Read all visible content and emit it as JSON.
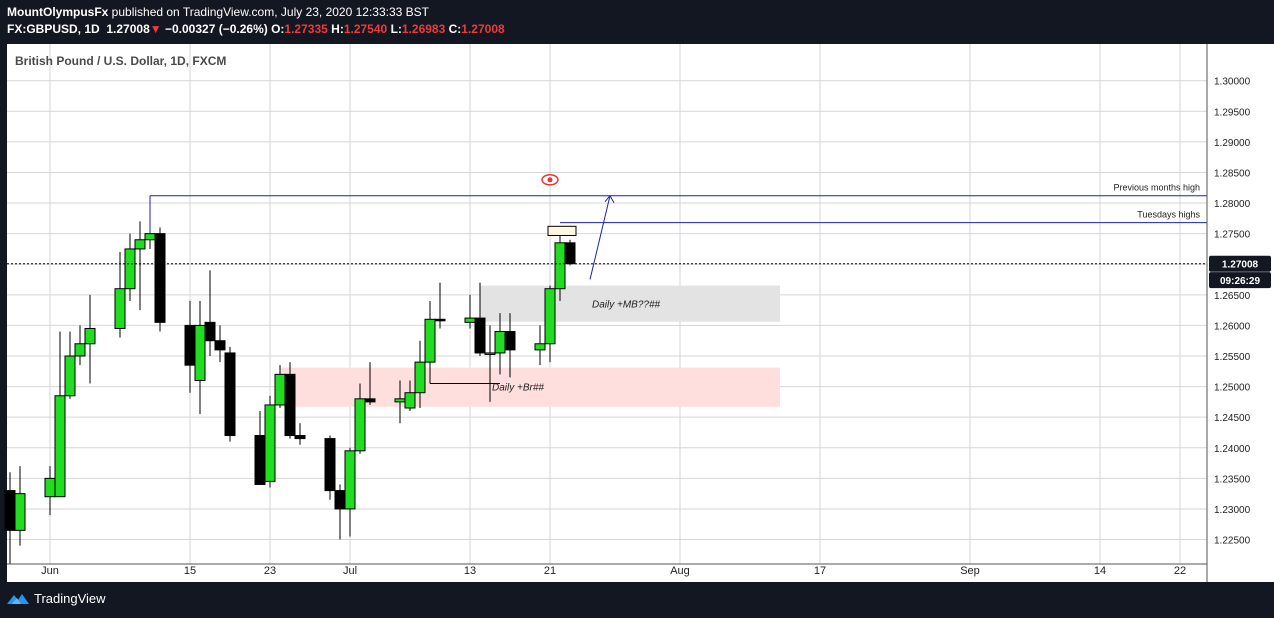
{
  "header": {
    "author": "MountOlympusFx",
    "published_text": " published on TradingView.com, July 23, 2020 12:33:33 BST",
    "symbol": "FX:GBPUSD, 1D",
    "last": "1.27008",
    "change_icon": "down-triangle-icon",
    "change": "−0.00327 (−0.26%)",
    "o_label": "O:",
    "o_value": "1.27335",
    "h_label": "H:",
    "h_value": "1.27540",
    "l_label": "L:",
    "l_value": "1.26983",
    "c_label": "C:",
    "c_value": "1.27008"
  },
  "footer": {
    "brand": "TradingView",
    "logo_icon": "tradingview-logo-icon"
  },
  "colors": {
    "background": "#131722",
    "chart_bg": "#ffffff",
    "grid": "#d6d6d6",
    "up": "#21dd21",
    "down": "#000000",
    "trendline": "#1a23a6",
    "demand_zone": "#e3e3e3",
    "breaker_zone": "#ffdede",
    "label_bg": "#131722",
    "change_down": "#ef3a3a"
  },
  "chart_data": {
    "type": "candlestick",
    "title": "British Pound / U.S. Dollar, 1D, FXCM",
    "y_range": [
      1.221,
      1.306
    ],
    "grid": true,
    "y_ticks": [
      "1.22500",
      "1.23000",
      "1.23500",
      "1.24000",
      "1.24500",
      "1.25000",
      "1.25500",
      "1.26000",
      "1.26500",
      "1.27000",
      "1.27500",
      "1.28000",
      "1.28500",
      "1.29000",
      "1.29500",
      "1.30000"
    ],
    "x_ticks": [
      {
        "label": "Jun",
        "date": "2020-06-01"
      },
      {
        "label": "15",
        "date": "2020-06-15"
      },
      {
        "label": "23",
        "date": "2020-06-23"
      },
      {
        "label": "Jul",
        "date": "2020-07-01"
      },
      {
        "label": "13",
        "date": "2020-07-13"
      },
      {
        "label": "21",
        "date": "2020-07-21"
      },
      {
        "label": "Aug",
        "date": "2020-08-03"
      },
      {
        "label": "17",
        "date": "2020-08-17"
      },
      {
        "label": "Sep",
        "date": "2020-09-01"
      },
      {
        "label": "14",
        "date": "2020-09-14"
      },
      {
        "label": "22",
        "date": "2020-09-22"
      }
    ],
    "candles": [
      {
        "date": "2020-05-28",
        "o": 1.233,
        "h": 1.236,
        "l": 1.221,
        "c": 1.2265
      },
      {
        "date": "2020-05-29",
        "o": 1.2265,
        "h": 1.237,
        "l": 1.224,
        "c": 1.2325
      },
      {
        "date": "2020-06-01",
        "o": 1.232,
        "h": 1.237,
        "l": 1.229,
        "c": 1.235
      },
      {
        "date": "2020-06-02",
        "o": 1.232,
        "h": 1.259,
        "l": 1.232,
        "c": 1.2485
      },
      {
        "date": "2020-06-03",
        "o": 1.2485,
        "h": 1.259,
        "l": 1.248,
        "c": 1.255
      },
      {
        "date": "2020-06-04",
        "o": 1.255,
        "h": 1.26,
        "l": 1.2535,
        "c": 1.257
      },
      {
        "date": "2020-06-05",
        "o": 1.257,
        "h": 1.265,
        "l": 1.2505,
        "c": 1.2595
      },
      {
        "date": "2020-06-08",
        "o": 1.2595,
        "h": 1.272,
        "l": 1.258,
        "c": 1.266
      },
      {
        "date": "2020-06-09",
        "o": 1.266,
        "h": 1.275,
        "l": 1.264,
        "c": 1.2725
      },
      {
        "date": "2020-06-10",
        "o": 1.2725,
        "h": 1.277,
        "l": 1.2625,
        "c": 1.274
      },
      {
        "date": "2020-06-11",
        "o": 1.274,
        "h": 1.281,
        "l": 1.2725,
        "c": 1.275
      },
      {
        "date": "2020-06-12",
        "o": 1.275,
        "h": 1.276,
        "l": 1.259,
        "c": 1.2605
      },
      {
        "date": "2020-06-15",
        "o": 1.26,
        "h": 1.264,
        "l": 1.249,
        "c": 1.2535
      },
      {
        "date": "2020-06-16",
        "o": 1.251,
        "h": 1.264,
        "l": 1.2455,
        "c": 1.26
      },
      {
        "date": "2020-06-17",
        "o": 1.2605,
        "h": 1.269,
        "l": 1.255,
        "c": 1.2575
      },
      {
        "date": "2020-06-18",
        "o": 1.2575,
        "h": 1.26,
        "l": 1.254,
        "c": 1.256
      },
      {
        "date": "2020-06-19",
        "o": 1.2555,
        "h": 1.2565,
        "l": 1.241,
        "c": 1.242
      },
      {
        "date": "2020-06-22",
        "o": 1.242,
        "h": 1.246,
        "l": 1.234,
        "c": 1.234
      },
      {
        "date": "2020-06-23",
        "o": 1.2345,
        "h": 1.2485,
        "l": 1.2335,
        "c": 1.247
      },
      {
        "date": "2020-06-24",
        "o": 1.247,
        "h": 1.2535,
        "l": 1.2465,
        "c": 1.252
      },
      {
        "date": "2020-06-25",
        "o": 1.252,
        "h": 1.254,
        "l": 1.2415,
        "c": 1.242
      },
      {
        "date": "2020-06-26",
        "o": 1.242,
        "h": 1.244,
        "l": 1.2405,
        "c": 1.2415
      },
      {
        "date": "2020-06-29",
        "o": 1.2415,
        "h": 1.242,
        "l": 1.2315,
        "c": 1.233
      },
      {
        "date": "2020-06-30",
        "o": 1.233,
        "h": 1.234,
        "l": 1.225,
        "c": 1.23
      },
      {
        "date": "2020-07-01",
        "o": 1.23,
        "h": 1.24,
        "l": 1.2255,
        "c": 1.2395
      },
      {
        "date": "2020-07-02",
        "o": 1.2395,
        "h": 1.2505,
        "l": 1.239,
        "c": 1.248
      },
      {
        "date": "2020-07-03",
        "o": 1.248,
        "h": 1.254,
        "l": 1.247,
        "c": 1.2475
      },
      {
        "date": "2020-07-06",
        "o": 1.2475,
        "h": 1.251,
        "l": 1.244,
        "c": 1.248
      },
      {
        "date": "2020-07-07",
        "o": 1.2465,
        "h": 1.251,
        "l": 1.246,
        "c": 1.249
      },
      {
        "date": "2020-07-08",
        "o": 1.249,
        "h": 1.2575,
        "l": 1.2465,
        "c": 1.254
      },
      {
        "date": "2020-07-09",
        "o": 1.254,
        "h": 1.264,
        "l": 1.2505,
        "c": 1.261
      },
      {
        "date": "2020-07-10",
        "o": 1.261,
        "h": 1.267,
        "l": 1.2595,
        "c": 1.2608
      },
      {
        "date": "2020-07-13",
        "o": 1.2605,
        "h": 1.265,
        "l": 1.2595,
        "c": 1.2612
      },
      {
        "date": "2020-07-14",
        "o": 1.2612,
        "h": 1.267,
        "l": 1.255,
        "c": 1.2555
      },
      {
        "date": "2020-07-15",
        "o": 1.2555,
        "h": 1.26,
        "l": 1.2475,
        "c": 1.2555
      },
      {
        "date": "2020-07-16",
        "o": 1.2555,
        "h": 1.262,
        "l": 1.252,
        "c": 1.259
      },
      {
        "date": "2020-07-17",
        "o": 1.259,
        "h": 1.262,
        "l": 1.2515,
        "c": 1.256
      },
      {
        "date": "2020-07-20",
        "o": 1.256,
        "h": 1.26,
        "l": 1.2535,
        "c": 1.257
      },
      {
        "date": "2020-07-21",
        "o": 1.257,
        "h": 1.2665,
        "l": 1.254,
        "c": 1.266
      },
      {
        "date": "2020-07-22",
        "o": 1.266,
        "h": 1.276,
        "l": 1.264,
        "c": 1.2735
      },
      {
        "date": "2020-07-23",
        "o": 1.2735,
        "h": 1.274,
        "l": 1.2698,
        "c": 1.2701
      }
    ],
    "price_labels": [
      {
        "text": "1.27008",
        "value": 1.27008
      },
      {
        "text": "09:26:29",
        "value": 1.2679
      }
    ],
    "annotations": [
      {
        "text": "Previous months high",
        "value": 1.2812
      },
      {
        "text": "Tuesdays highs",
        "value": 1.2768
      },
      {
        "text": "Daily +MB??##"
      },
      {
        "text": "Daily +Br##"
      }
    ],
    "zones": [
      {
        "name": "daily-mb-zone",
        "from_date": "2020-07-14",
        "to_date": "2020-08-13",
        "top": 1.2665,
        "bottom": 1.2606
      },
      {
        "name": "daily-breaker-zone",
        "from_date": "2020-06-24",
        "to_date": "2020-08-13",
        "top": 1.2531,
        "bottom": 1.2467
      }
    ]
  }
}
